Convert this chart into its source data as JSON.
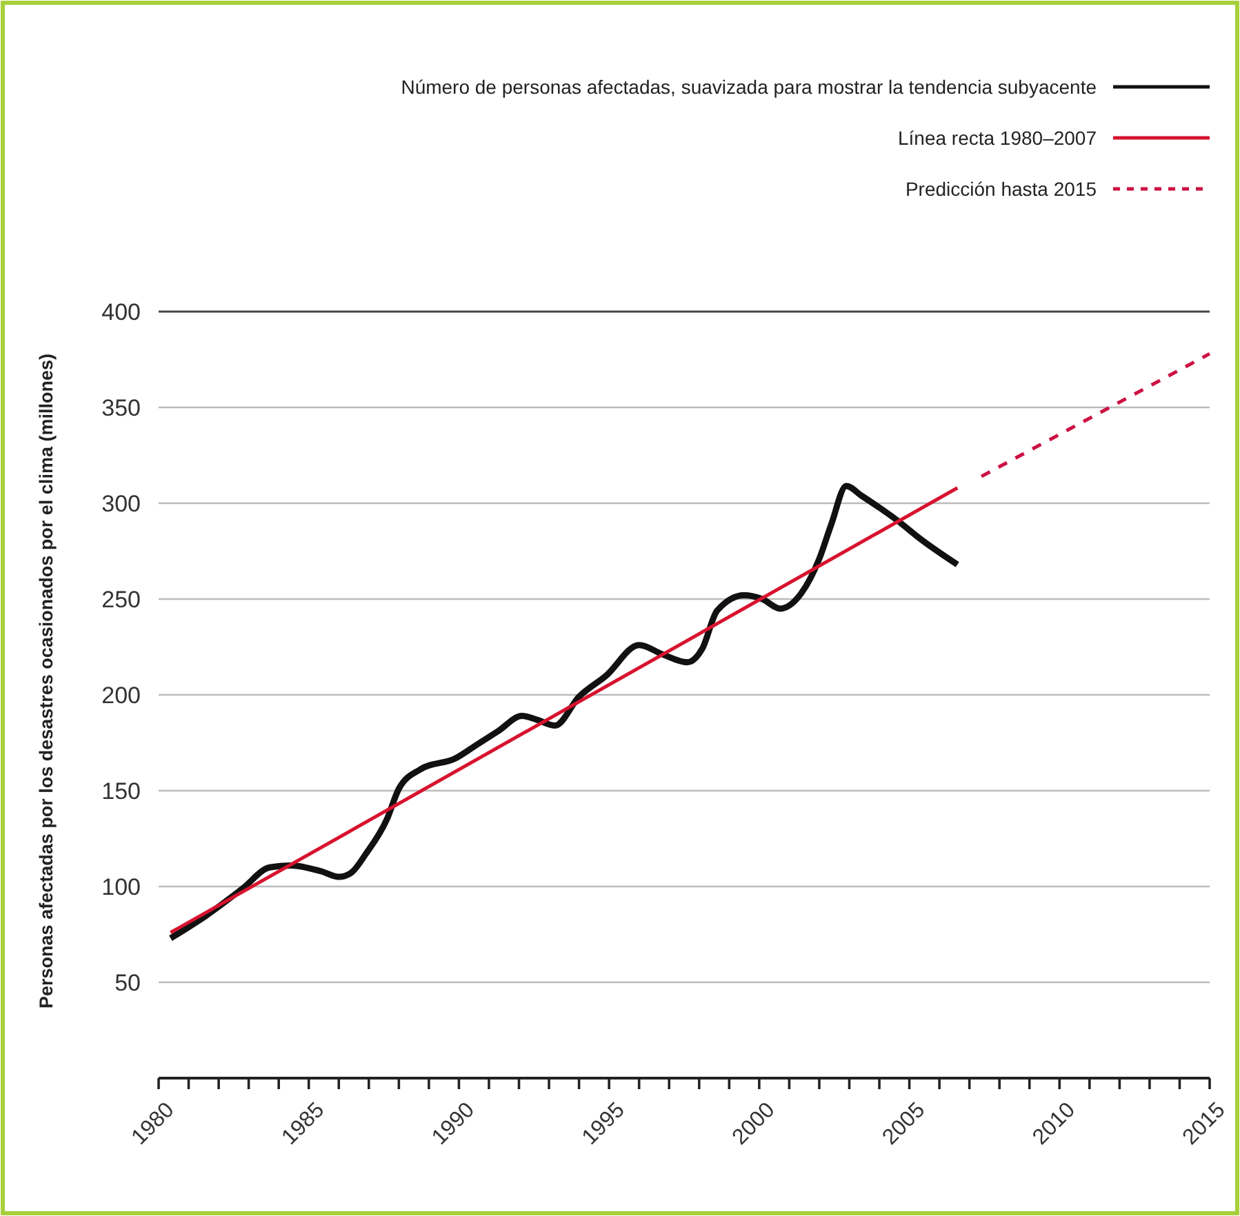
{
  "chart_data": {
    "type": "line",
    "ylabel": "Personas afectadas por los desastres ocasionados por el clima (millones)",
    "xlim": [
      1980,
      2015
    ],
    "ylim": [
      0,
      400
    ],
    "xticks": [
      1980,
      {
        "value": 1981,
        "label": null
      },
      {
        "value": 1982,
        "label": null
      },
      {
        "value": 1983,
        "label": null
      },
      {
        "value": 1984,
        "label": null
      },
      1985,
      {
        "value": 1986,
        "label": null
      },
      {
        "value": 1987,
        "label": null
      },
      {
        "value": 1988,
        "label": null
      },
      {
        "value": 1989,
        "label": null
      },
      1990,
      {
        "value": 1991,
        "label": null
      },
      {
        "value": 1992,
        "label": null
      },
      {
        "value": 1993,
        "label": null
      },
      {
        "value": 1994,
        "label": null
      },
      1995,
      {
        "value": 1996,
        "label": null
      },
      {
        "value": 1997,
        "label": null
      },
      {
        "value": 1998,
        "label": null
      },
      {
        "value": 1999,
        "label": null
      },
      2000,
      {
        "value": 2001,
        "label": null
      },
      {
        "value": 2002,
        "label": null
      },
      {
        "value": 2003,
        "label": null
      },
      {
        "value": 2004,
        "label": null
      },
      2005,
      {
        "value": 2006,
        "label": null
      },
      {
        "value": 2007,
        "label": null
      },
      {
        "value": 2008,
        "label": null
      },
      {
        "value": 2009,
        "label": null
      },
      2010,
      {
        "value": 2011,
        "label": null
      },
      {
        "value": 2012,
        "label": null
      },
      {
        "value": 2013,
        "label": null
      },
      {
        "value": 2014,
        "label": null
      },
      2015
    ],
    "yticks": [
      50,
      100,
      150,
      200,
      250,
      300,
      350,
      400
    ],
    "grid": "y",
    "legend": "top right",
    "series": [
      {
        "name": "Número de personas afectadas, suavizada para mostrar la tendencia subyacente",
        "color": "#111111",
        "line_style": "solid",
        "x": [
          1980.4,
          1981.6,
          1982.8,
          1983.7,
          1984.4,
          1985.4,
          1986,
          1986.4,
          1986.9,
          1987.6,
          1988,
          1988.7,
          1989.9,
          1990.6,
          1991.3,
          1992.1,
          1992.6,
          1993.2,
          1994,
          1994.9,
          1996,
          1996.8,
          1997.6,
          1998.1,
          1998.6,
          1999.5,
          2000.1,
          2000.7,
          2001.4,
          2002,
          2002.4,
          2002.9,
          2003.4,
          2004.6,
          2005.4,
          2006.6
        ],
        "values": [
          73,
          85,
          99,
          110,
          111,
          108,
          105,
          107,
          117,
          135,
          151,
          161,
          167,
          174,
          181,
          189,
          187,
          184,
          199,
          210,
          226,
          221,
          217,
          224,
          244,
          252,
          250,
          245,
          253,
          271,
          289,
          309,
          304,
          291,
          281,
          268
        ]
      },
      {
        "name": "Línea recta 1980–2007",
        "color": "#d7132f",
        "line_style": "solid",
        "x": [
          1980.4,
          2006.6
        ],
        "values": [
          76,
          308
        ]
      },
      {
        "name": "Predicción hasta 2015",
        "color": "#cc1142",
        "line_style": "dashed",
        "x": [
          2007.4,
          2015
        ],
        "values": [
          314,
          378
        ]
      }
    ]
  }
}
